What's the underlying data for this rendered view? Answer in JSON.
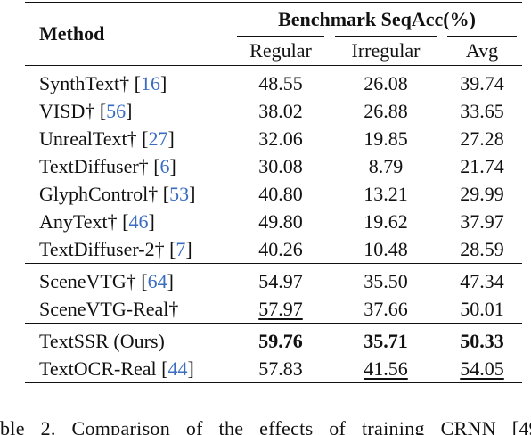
{
  "header": {
    "method": "Method",
    "group": "Benchmark SeqAcc(%)",
    "columns": [
      "Regular",
      "Irregular",
      "Avg"
    ]
  },
  "sections": [
    {
      "rows": [
        {
          "method": "SynthText†",
          "cite": "16",
          "values": [
            "48.55",
            "26.08",
            "39.74"
          ],
          "bold": [
            false,
            false,
            false
          ],
          "underline": [
            false,
            false,
            false
          ]
        },
        {
          "method": "VISD†",
          "cite": "56",
          "values": [
            "38.02",
            "26.88",
            "33.65"
          ],
          "bold": [
            false,
            false,
            false
          ],
          "underline": [
            false,
            false,
            false
          ]
        },
        {
          "method": "UnrealText†",
          "cite": "27",
          "values": [
            "32.06",
            "19.85",
            "27.28"
          ],
          "bold": [
            false,
            false,
            false
          ],
          "underline": [
            false,
            false,
            false
          ]
        },
        {
          "method": "TextDiffuser†",
          "cite": "6",
          "values": [
            "30.08",
            "8.79",
            "21.74"
          ],
          "bold": [
            false,
            false,
            false
          ],
          "underline": [
            false,
            false,
            false
          ]
        },
        {
          "method": "GlyphControl†",
          "cite": "53",
          "values": [
            "40.80",
            "13.21",
            "29.99"
          ],
          "bold": [
            false,
            false,
            false
          ],
          "underline": [
            false,
            false,
            false
          ]
        },
        {
          "method": "AnyText†",
          "cite": "46",
          "values": [
            "49.80",
            "19.62",
            "37.97"
          ],
          "bold": [
            false,
            false,
            false
          ],
          "underline": [
            false,
            false,
            false
          ]
        },
        {
          "method": "TextDiffuser-2†",
          "cite": "7",
          "values": [
            "40.26",
            "10.48",
            "28.59"
          ],
          "bold": [
            false,
            false,
            false
          ],
          "underline": [
            false,
            false,
            false
          ]
        }
      ]
    },
    {
      "rows": [
        {
          "method": "SceneVTG†",
          "cite": "64",
          "values": [
            "54.97",
            "35.50",
            "47.34"
          ],
          "bold": [
            false,
            false,
            false
          ],
          "underline": [
            false,
            false,
            false
          ]
        },
        {
          "method": "SceneVTG-Real†",
          "cite": "",
          "values": [
            "57.97",
            "37.66",
            "50.01"
          ],
          "bold": [
            false,
            false,
            false
          ],
          "underline": [
            true,
            false,
            false
          ]
        }
      ]
    },
    {
      "rows": [
        {
          "method": "TextSSR (Ours)",
          "cite": "",
          "values": [
            "59.76",
            "35.71",
            "50.33"
          ],
          "bold": [
            true,
            true,
            true
          ],
          "underline": [
            false,
            false,
            false
          ]
        },
        {
          "method": "TextOCR-Real",
          "cite": "44",
          "values": [
            "57.83",
            "41.56",
            "54.05"
          ],
          "bold": [
            false,
            false,
            false
          ],
          "underline": [
            false,
            true,
            true
          ]
        }
      ]
    }
  ],
  "caption": "ble 2. Comparison of the effects of training CRNN [49]",
  "colors": {
    "citation": "#3a6cc0",
    "text": "#111111"
  }
}
